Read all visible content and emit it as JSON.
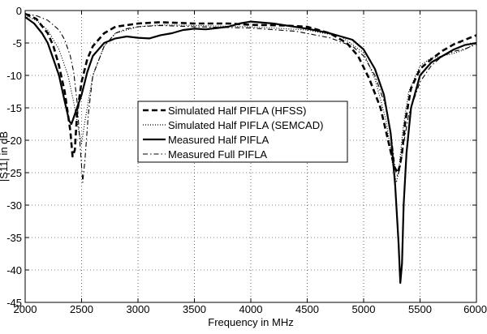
{
  "chart_data": {
    "type": "line",
    "title": "",
    "xlabel": "Frequency in MHz",
    "ylabel": "|S11| in dB",
    "xlim": [
      2000,
      6000
    ],
    "ylim": [
      -45,
      0
    ],
    "xticks": [
      2000,
      2500,
      3000,
      3500,
      4000,
      4500,
      5000,
      5500,
      6000
    ],
    "yticks": [
      0,
      -5,
      -10,
      -15,
      -20,
      -25,
      -30,
      -35,
      -40,
      -45
    ],
    "grid": true,
    "legend_position": "center-left",
    "series": [
      {
        "name": "Simulated Half PIFLA (HFSS)",
        "style": "dashed-thick",
        "color": "#000000",
        "x": [
          2000,
          2100,
          2200,
          2250,
          2300,
          2350,
          2400,
          2420,
          2440,
          2460,
          2500,
          2550,
          2600,
          2700,
          2800,
          3000,
          3200,
          3500,
          3800,
          4000,
          4300,
          4500,
          4700,
          4850,
          4950,
          5050,
          5150,
          5230,
          5270,
          5300,
          5320,
          5340,
          5370,
          5420,
          5500,
          5600,
          5700,
          5800,
          5900,
          6000
        ],
        "y": [
          -0.5,
          -1.3,
          -3.5,
          -5.5,
          -8.5,
          -12.5,
          -18.5,
          -22.5,
          -21.5,
          -16,
          -11,
          -7.5,
          -5.5,
          -3.5,
          -2.5,
          -2,
          -1.8,
          -2,
          -2,
          -2.2,
          -2.3,
          -2.5,
          -3.5,
          -5,
          -7,
          -10.5,
          -15,
          -21,
          -24,
          -25,
          -24,
          -22,
          -17,
          -12,
          -9,
          -7.5,
          -6.2,
          -5.2,
          -4.5,
          -3.8
        ]
      },
      {
        "name": "Simulated Half PIFLA (SEMCAD)",
        "style": "dotted",
        "color": "#000000",
        "x": [
          2000,
          2100,
          2200,
          2300,
          2380,
          2440,
          2480,
          2500,
          2530,
          2600,
          2700,
          2800,
          3000,
          3200,
          3500,
          4000,
          4500,
          4800,
          5000,
          5100,
          5200,
          5260,
          5290,
          5310,
          5350,
          5400,
          5500,
          5600,
          5700,
          5800,
          5900,
          6000
        ],
        "y": [
          -0.8,
          -1.5,
          -3,
          -6,
          -10,
          -15,
          -19,
          -20.5,
          -17,
          -10,
          -5.5,
          -3.5,
          -2.5,
          -2.2,
          -2.3,
          -2.5,
          -3,
          -4,
          -6.5,
          -10.5,
          -17,
          -24,
          -26.5,
          -25,
          -18,
          -12.5,
          -8.5,
          -7.3,
          -7,
          -6.6,
          -6,
          -5
        ]
      },
      {
        "name": "Measured Half PIFLA",
        "style": "solid-thick",
        "color": "#000000",
        "x": [
          2000,
          2080,
          2150,
          2200,
          2250,
          2300,
          2350,
          2390,
          2410,
          2430,
          2460,
          2500,
          2550,
          2600,
          2700,
          2800,
          2900,
          3000,
          3100,
          3200,
          3300,
          3400,
          3500,
          3600,
          3700,
          3800,
          3900,
          4000,
          4200,
          4500,
          4700,
          4900,
          5000,
          5100,
          5180,
          5240,
          5280,
          5310,
          5325,
          5340,
          5355,
          5380,
          5420,
          5500,
          5600,
          5700,
          5800,
          5900,
          6000
        ],
        "y": [
          -1,
          -2,
          -3.5,
          -5,
          -7.5,
          -10,
          -14,
          -17,
          -17.5,
          -16.5,
          -15,
          -13,
          -9.5,
          -7,
          -5,
          -4.3,
          -4,
          -4.2,
          -4.3,
          -3.8,
          -3.5,
          -3,
          -2.8,
          -2.9,
          -2.7,
          -2.5,
          -2,
          -1.7,
          -2,
          -2.8,
          -3.5,
          -4.5,
          -6,
          -9,
          -13,
          -19,
          -27,
          -36,
          -42,
          -39,
          -30,
          -22,
          -15,
          -10,
          -8,
          -7,
          -6,
          -5.3,
          -5
        ]
      },
      {
        "name": "Measured Full PIFLA",
        "style": "dashdot",
        "color": "#000000",
        "x": [
          2000,
          2100,
          2200,
          2300,
          2350,
          2400,
          2430,
          2460,
          2480,
          2500,
          2510,
          2530,
          2560,
          2600,
          2700,
          2800,
          2900,
          3000,
          3200,
          3500,
          4000,
          4400,
          4700,
          4900,
          5000,
          5100,
          5200,
          5250,
          5280,
          5300,
          5320,
          5350,
          5400,
          5500,
          5600,
          5700,
          5800,
          5900,
          6000
        ],
        "y": [
          -0.5,
          -0.8,
          -1.5,
          -3,
          -4.5,
          -7,
          -9.5,
          -14,
          -19,
          -24,
          -26.5,
          -23,
          -16,
          -10,
          -5.5,
          -3.5,
          -2.8,
          -2.5,
          -2.3,
          -2.5,
          -2.7,
          -3.2,
          -4.2,
          -5.5,
          -7,
          -10,
          -15,
          -20,
          -24.5,
          -25.5,
          -24.5,
          -21,
          -16,
          -11,
          -8.5,
          -7,
          -6.3,
          -5.9,
          -5.2
        ]
      }
    ]
  }
}
